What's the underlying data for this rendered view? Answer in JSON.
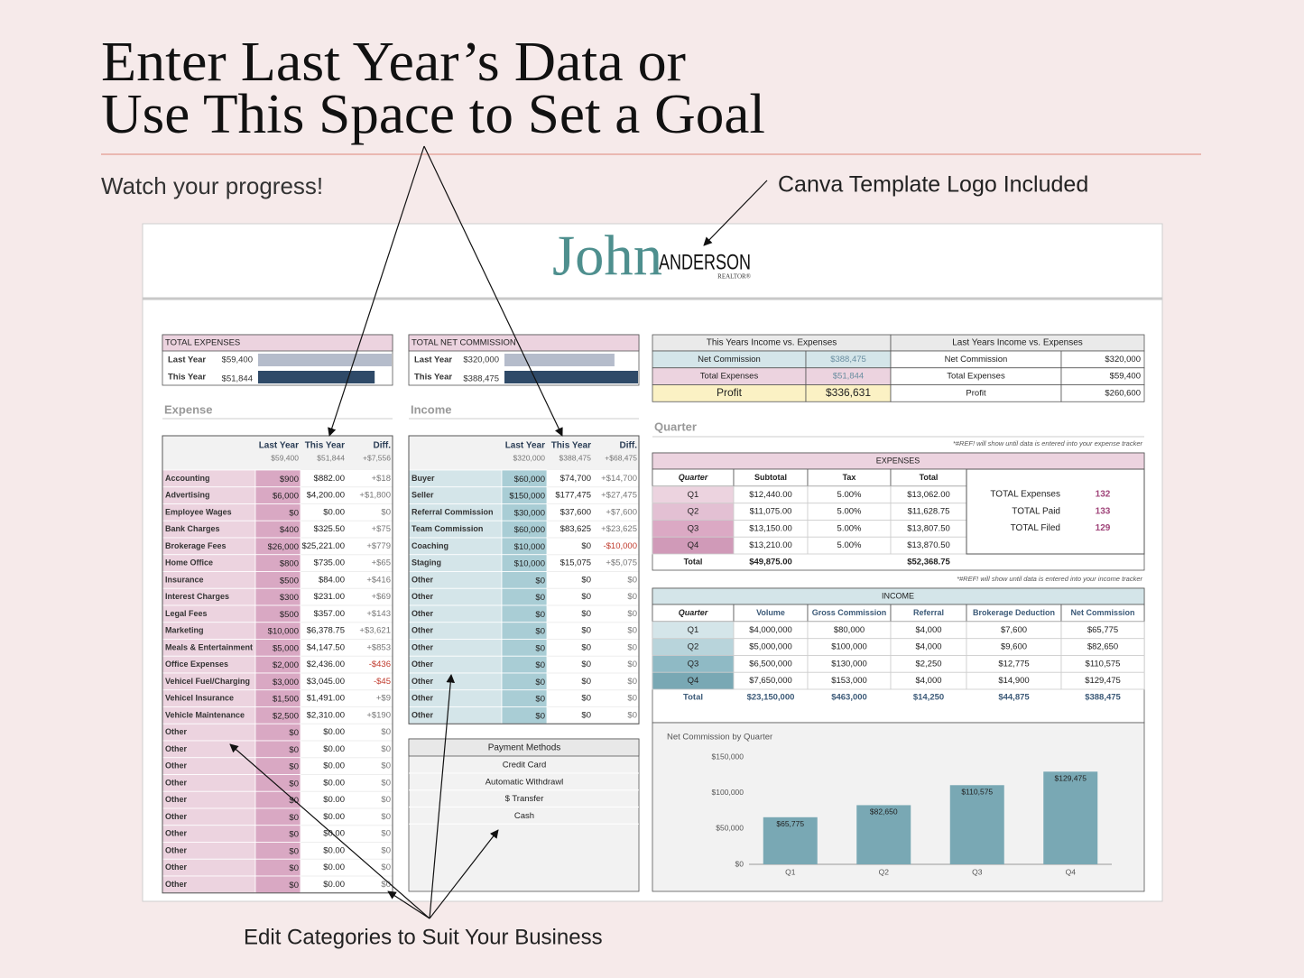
{
  "header": {
    "title_line1": "Enter Last Year’s Data or",
    "title_line2": "Use This Space to Set a Goal",
    "subtitle": "Watch your progress!",
    "logo_note": "Canva Template Logo Included",
    "footer_note": "Edit Categories to Suit Your Business"
  },
  "logo": {
    "first": "John",
    "last": "ANDERSON",
    "tagline": "REALTOR®"
  },
  "expense_summary": {
    "title": "TOTAL EXPENSES",
    "rows": [
      {
        "name": "Last Year",
        "amount": {
          "value": 59400,
          "label": "$59,400"
        }
      },
      {
        "name": "This Year",
        "amount": {
          "value": 51844,
          "label": "$51,844"
        }
      }
    ]
  },
  "commission_summary": {
    "title": "TOTAL NET COMMISSION",
    "rows": [
      {
        "name": "Last Year",
        "amount": {
          "value": 320000,
          "label": "$320,000"
        }
      },
      {
        "name": "This Year",
        "amount": {
          "value": 388475,
          "label": "$388,475"
        }
      }
    ]
  },
  "expense_table": {
    "section": "Expense",
    "columns": [
      "Last Year",
      "This Year",
      "Diff."
    ],
    "totals": [
      "$59,400",
      "$51,844",
      "+$7,556"
    ],
    "rows": [
      [
        "Accounting",
        "$900",
        "$882.00",
        "+$18"
      ],
      [
        "Advertising",
        "$6,000",
        "$4,200.00",
        "+$1,800"
      ],
      [
        "Employee Wages",
        "$0",
        "$0.00",
        "$0"
      ],
      [
        "Bank Charges",
        "$400",
        "$325.50",
        "+$75"
      ],
      [
        "Brokerage Fees",
        "$26,000",
        "$25,221.00",
        "+$779"
      ],
      [
        "Home Office",
        "$800",
        "$735.00",
        "+$65"
      ],
      [
        "Insurance",
        "$500",
        "$84.00",
        "+$416"
      ],
      [
        "Interest Charges",
        "$300",
        "$231.00",
        "+$69"
      ],
      [
        "Legal Fees",
        "$500",
        "$357.00",
        "+$143"
      ],
      [
        "Marketing",
        "$10,000",
        "$6,378.75",
        "+$3,621"
      ],
      [
        "Meals & Entertainment",
        "$5,000",
        "$4,147.50",
        "+$853"
      ],
      [
        "Office Expenses",
        "$2,000",
        "$2,436.00",
        "-$436"
      ],
      [
        "Vehicel Fuel/Charging",
        "$3,000",
        "$3,045.00",
        "-$45"
      ],
      [
        "Vehicel Insurance",
        "$1,500",
        "$1,491.00",
        "+$9"
      ],
      [
        "Vehicle Maintenance",
        "$2,500",
        "$2,310.00",
        "+$190"
      ],
      [
        "Other",
        "$0",
        "$0.00",
        "$0"
      ],
      [
        "Other",
        "$0",
        "$0.00",
        "$0"
      ],
      [
        "Other",
        "$0",
        "$0.00",
        "$0"
      ],
      [
        "Other",
        "$0",
        "$0.00",
        "$0"
      ],
      [
        "Other",
        "$0",
        "$0.00",
        "$0"
      ],
      [
        "Other",
        "$0",
        "$0.00",
        "$0"
      ],
      [
        "Other",
        "$0",
        "$0.00",
        "$0"
      ],
      [
        "Other",
        "$0",
        "$0.00",
        "$0"
      ],
      [
        "Other",
        "$0",
        "$0.00",
        "$0"
      ],
      [
        "Other",
        "$0",
        "$0.00",
        "$0"
      ]
    ]
  },
  "income_table": {
    "section": "Income",
    "columns": [
      "Last Year",
      "This Year",
      "Diff."
    ],
    "totals": [
      "$320,000",
      "$388,475",
      "+$68,475"
    ],
    "rows": [
      [
        "Buyer",
        "$60,000",
        "$74,700",
        "+$14,700"
      ],
      [
        "Seller",
        "$150,000",
        "$177,475",
        "+$27,475"
      ],
      [
        "Referral Commission",
        "$30,000",
        "$37,600",
        "+$7,600"
      ],
      [
        "Team Commission",
        "$60,000",
        "$83,625",
        "+$23,625"
      ],
      [
        "Coaching",
        "$10,000",
        "$0",
        "-$10,000"
      ],
      [
        "Staging",
        "$10,000",
        "$15,075",
        "+$5,075"
      ],
      [
        "Other",
        "$0",
        "$0",
        "$0"
      ],
      [
        "Other",
        "$0",
        "$0",
        "$0"
      ],
      [
        "Other",
        "$0",
        "$0",
        "$0"
      ],
      [
        "Other",
        "$0",
        "$0",
        "$0"
      ],
      [
        "Other",
        "$0",
        "$0",
        "$0"
      ],
      [
        "Other",
        "$0",
        "$0",
        "$0"
      ],
      [
        "Other",
        "$0",
        "$0",
        "$0"
      ],
      [
        "Other",
        "$0",
        "$0",
        "$0"
      ],
      [
        "Other",
        "$0",
        "$0",
        "$0"
      ]
    ]
  },
  "payment_methods": {
    "title": "Payment Methods",
    "items": [
      "Credit Card",
      "Automatic Withdrawl",
      "$ Transfer",
      "Cash"
    ]
  },
  "income_vs_expenses": {
    "this_year": {
      "title": "This Years Income vs. Expenses",
      "rows": [
        [
          "Net Commission",
          "$388,475"
        ],
        [
          "Total Expenses",
          "$51,844"
        ],
        [
          "Profit",
          "$336,631"
        ]
      ]
    },
    "last_year": {
      "title": "Last Years Income vs. Expenses",
      "rows": [
        [
          "Net Commission",
          "$320,000"
        ],
        [
          "Total Expenses",
          "$59,400"
        ],
        [
          "Profit",
          "$260,600"
        ]
      ]
    }
  },
  "quarter": {
    "section": "Quarter",
    "expense_note": "*#REF! will show until data is entered into your expense tracker",
    "expenses": {
      "title": "EXPENSES",
      "columns": [
        "Quarter",
        "Subtotal",
        "Tax",
        "Total"
      ],
      "rows": [
        [
          "Q1",
          "$12,440.00",
          "5.00%",
          "$13,062.00"
        ],
        [
          "Q2",
          "$11,075.00",
          "5.00%",
          "$11,628.75"
        ],
        [
          "Q3",
          "$13,150.00",
          "5.00%",
          "$13,807.50"
        ],
        [
          "Q4",
          "$13,210.00",
          "5.00%",
          "$13,870.50"
        ]
      ],
      "total": {
        "label": "Total",
        "subtotal": "$49,875.00",
        "total": "$52,368.75"
      }
    },
    "side_totals": [
      [
        "TOTAL Expenses",
        "132"
      ],
      [
        "TOTAL Paid",
        "133"
      ],
      [
        "TOTAL Filed",
        "129"
      ]
    ],
    "income_note": "*#REF! will show until data is entered into your income tracker",
    "income": {
      "title": "INCOME",
      "columns": [
        "Quarter",
        "Volume",
        "Gross Commission",
        "Referral",
        "Brokerage Deduction",
        "Net Commission"
      ],
      "rows": [
        [
          "Q1",
          "$4,000,000",
          "$80,000",
          "$4,000",
          "$7,600",
          "$65,775"
        ],
        [
          "Q2",
          "$5,000,000",
          "$100,000",
          "$4,000",
          "$9,600",
          "$82,650"
        ],
        [
          "Q3",
          "$6,500,000",
          "$130,000",
          "$2,250",
          "$12,775",
          "$110,575"
        ],
        [
          "Q4",
          "$7,650,000",
          "$153,000",
          "$4,000",
          "$14,900",
          "$129,475"
        ]
      ],
      "total": [
        "Total",
        "$23,150,000",
        "$463,000",
        "$14,250",
        "$44,875",
        "$388,475"
      ]
    }
  },
  "chart_data": {
    "type": "bar",
    "title": "Net Commission by Quarter",
    "categories": [
      "Q1",
      "Q2",
      "Q3",
      "Q4"
    ],
    "values": [
      65775,
      82650,
      110575,
      129475
    ],
    "value_labels": [
      "$65,775",
      "$82,650",
      "$110,575",
      "$129,475"
    ],
    "color": "#79a8b4",
    "ylim": [
      0,
      150000
    ],
    "yticks": [
      {
        "value": 0,
        "label": "$0"
      },
      {
        "value": 50000,
        "label": "$50,000"
      },
      {
        "value": 100000,
        "label": "$100,000"
      },
      {
        "value": 150000,
        "label": "$150,000"
      }
    ],
    "grid": false
  }
}
